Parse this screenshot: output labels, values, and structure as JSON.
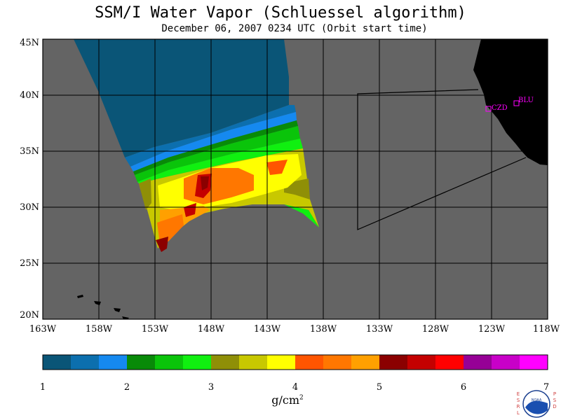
{
  "title": "SSM/I Water Vapor (Schluessel algorithm)",
  "subtitle": "December 06, 2007  0234 UTC  (Orbit start time)",
  "map": {
    "lat_labels": [
      "45N",
      "40N",
      "35N",
      "30N",
      "25N",
      "20N"
    ],
    "lon_labels": [
      "163W",
      "158W",
      "153W",
      "148W",
      "143W",
      "138W",
      "133W",
      "128W",
      "123W",
      "118W"
    ],
    "stations": [
      {
        "id": "CZD",
        "lat": 38.6,
        "lon": -123.2
      },
      {
        "id": "BLU",
        "lat": 39.3,
        "lon": -120.8
      }
    ]
  },
  "colorbar": {
    "tick_labels": [
      "1",
      "2",
      "3",
      "4",
      "5",
      "6",
      "7"
    ],
    "unit": "g/cm",
    "unit_exp": "2",
    "colors": [
      "#0a5577",
      "#0c6fae",
      "#1589f0",
      "#088a08",
      "#0ac40a",
      "#10f010",
      "#8f8f07",
      "#c8c800",
      "#ffff00",
      "#ff5500",
      "#ff7700",
      "#ffa000",
      "#8b0000",
      "#c40000",
      "#ff0000",
      "#960096",
      "#c800c8",
      "#ff00ff"
    ]
  },
  "colors": {
    "ocean_nodata": "#646464",
    "land": "#000000",
    "station": "#ff00ff"
  },
  "logo": {
    "left_letters": "ESRL",
    "right_letters": "PSD",
    "badge": "NOAA"
  }
}
